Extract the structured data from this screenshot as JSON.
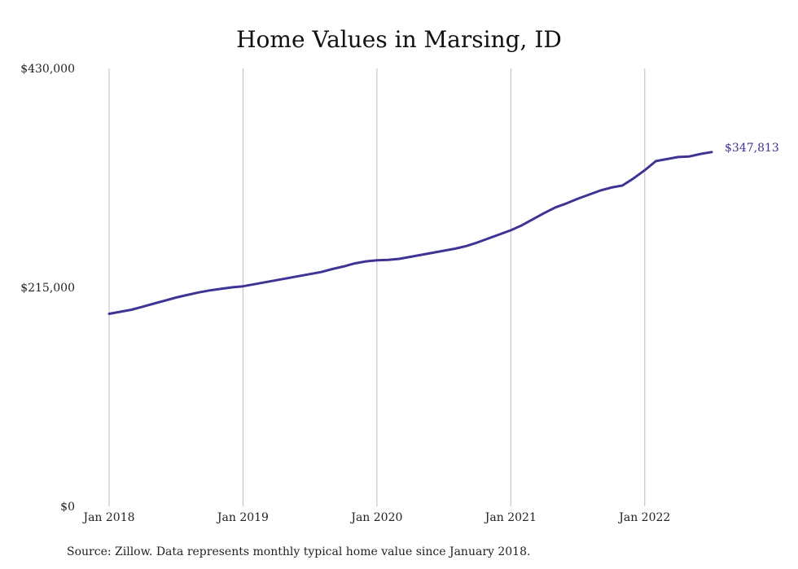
{
  "chart_data": {
    "type": "line",
    "title": "Home Values in Marsing, ID",
    "source_note": "Source: Zillow. Data represents monthly typical home value since January 2018.",
    "x_tick_labels": [
      "Jan 2018",
      "Jan 2019",
      "Jan 2020",
      "Jan 2021",
      "Jan 2022"
    ],
    "y_tick_labels": [
      "$430,000",
      "$215,000",
      "$0"
    ],
    "y_tick_values": [
      430000,
      215000,
      0
    ],
    "ylim": [
      0,
      430000
    ],
    "xlim": [
      "2018-01",
      "2022-07"
    ],
    "grid": "vertical",
    "line_color": "#3d3494",
    "series": [
      {
        "end_label": "$347,813",
        "x": [
          "2018-01",
          "2018-02",
          "2018-03",
          "2018-04",
          "2018-05",
          "2018-06",
          "2018-07",
          "2018-08",
          "2018-09",
          "2018-10",
          "2018-11",
          "2018-12",
          "2019-01",
          "2019-02",
          "2019-03",
          "2019-04",
          "2019-05",
          "2019-06",
          "2019-07",
          "2019-08",
          "2019-09",
          "2019-10",
          "2019-11",
          "2019-12",
          "2020-01",
          "2020-02",
          "2020-03",
          "2020-04",
          "2020-05",
          "2020-06",
          "2020-07",
          "2020-08",
          "2020-09",
          "2020-10",
          "2020-11",
          "2020-12",
          "2021-01",
          "2021-02",
          "2021-03",
          "2021-04",
          "2021-05",
          "2021-06",
          "2021-07",
          "2021-08",
          "2021-09",
          "2021-10",
          "2021-11",
          "2021-12",
          "2022-01",
          "2022-02",
          "2022-03",
          "2022-04",
          "2022-05",
          "2022-06",
          "2022-07"
        ],
        "values": [
          189000,
          191000,
          193000,
          196000,
          199000,
          202000,
          205000,
          207500,
          210000,
          212000,
          213500,
          215000,
          216000,
          218000,
          220000,
          222000,
          224000,
          226000,
          228000,
          230000,
          233000,
          235500,
          238500,
          240500,
          241500,
          242000,
          243000,
          245000,
          247000,
          249000,
          251000,
          253000,
          255500,
          259000,
          263000,
          267000,
          271000,
          276000,
          282000,
          288000,
          293500,
          297500,
          302000,
          306000,
          310000,
          313000,
          315000,
          322000,
          330000,
          339000,
          341000,
          343000,
          343500,
          346000,
          347813
        ]
      }
    ]
  }
}
